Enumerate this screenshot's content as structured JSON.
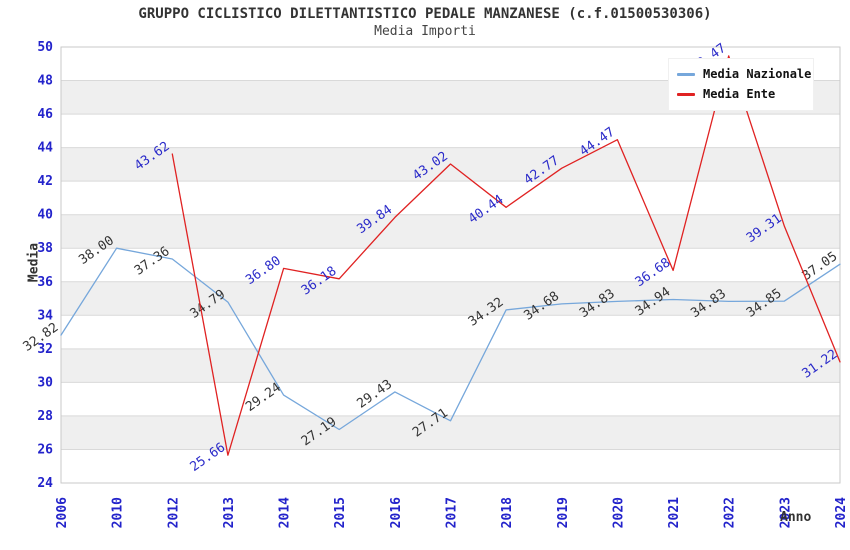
{
  "header": {
    "title": "GRUPPO CICLISTICO DILETTANTISTICO PEDALE MANZANESE (c.f.01500530306)",
    "subtitle": "Media Importi"
  },
  "axes": {
    "y_label": "Media",
    "x_label": "Anno"
  },
  "legend": {
    "items": [
      {
        "label": "Media Nazionale",
        "color": "#76a7db"
      },
      {
        "label": "Media Ente",
        "color": "#e02222"
      }
    ]
  },
  "chart_data": {
    "type": "line",
    "title": "GRUPPO CICLISTICO DILETTANTISTICO PEDALE MANZANESE (c.f.01500530306)",
    "subtitle": "Media Importi",
    "xlabel": "Anno",
    "ylabel": "Media",
    "categories": [
      "2006",
      "2010",
      "2012",
      "2013",
      "2014",
      "2015",
      "2016",
      "2017",
      "2018",
      "2019",
      "2020",
      "2021",
      "2022",
      "2023",
      "2024"
    ],
    "series": [
      {
        "name": "Media Nazionale",
        "color": "#76a7db",
        "label_color": "#333333",
        "values": [
          32.82,
          38.0,
          37.36,
          34.79,
          29.24,
          27.19,
          29.43,
          27.71,
          34.32,
          34.68,
          34.83,
          34.94,
          34.83,
          34.85,
          37.05
        ]
      },
      {
        "name": "Media Ente",
        "color": "#e02222",
        "label_color": "#2a2ac9",
        "values": [
          null,
          null,
          43.62,
          25.66,
          36.8,
          36.18,
          39.84,
          43.02,
          40.44,
          42.77,
          44.47,
          36.68,
          49.47,
          39.31,
          31.22
        ]
      }
    ],
    "ylim": [
      24,
      50
    ],
    "y_tick_step": 2,
    "grid": true,
    "legend_position": "top-right",
    "style": {
      "tick_label_color": "#2323cb",
      "band_fill": "#efefef",
      "gridline_color": "#d9d9d9",
      "plot_border_color": "#c9c9c9",
      "value_label_rotation_deg": -35,
      "x_tick_rotation_deg": -90
    }
  }
}
